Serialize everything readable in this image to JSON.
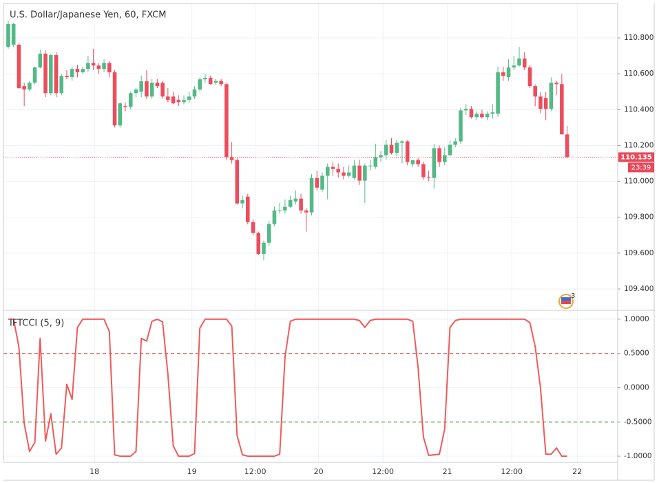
{
  "chart_data": [
    {
      "type": "candlestick",
      "title": "U.S. Dollar/Japanese Yen, 60, FXCM",
      "up_color": "#53b987",
      "down_color": "#eb4d5c",
      "grid": true,
      "ylim": [
        109.285,
        110.992
      ],
      "yticks": [
        {
          "value": 109.4,
          "label": "109.400"
        },
        {
          "value": 109.6,
          "label": "109.600"
        },
        {
          "value": 109.8,
          "label": "109.800"
        },
        {
          "value": 110.0,
          "label": "110.000"
        },
        {
          "value": 110.2,
          "label": "110.200"
        },
        {
          "value": 110.4,
          "label": "110.400"
        },
        {
          "value": 110.6,
          "label": "110.600"
        },
        {
          "value": 110.8,
          "label": "110.800"
        }
      ],
      "last_price": {
        "value": 110.135,
        "label": "110.135"
      },
      "countdown": "23:39",
      "last_color": "#e84a5a",
      "event_badge": "3",
      "open": [
        110.75,
        110.762,
        110.762,
        110.531,
        110.512,
        110.55,
        110.635,
        110.712,
        110.492,
        110.704,
        110.492,
        110.588,
        110.581,
        110.627,
        110.608,
        110.627,
        110.66,
        110.646,
        110.627,
        110.66,
        110.608,
        110.312,
        110.42,
        110.415,
        110.492,
        110.5,
        110.558,
        110.473,
        110.55,
        110.55,
        110.473,
        110.473,
        110.454,
        110.442,
        110.454,
        110.473,
        110.512,
        110.569,
        110.577,
        110.55,
        110.56,
        110.542,
        110.135,
        110.119,
        109.877,
        109.915,
        109.773,
        109.712,
        109.596,
        109.658,
        109.762,
        109.838,
        109.838,
        109.858,
        109.888,
        109.904,
        109.838,
        109.827,
        110.019,
        109.954,
        110.031,
        110.081,
        110.069,
        110.05,
        110.031,
        110.019,
        110.088,
        110.004,
        110.088,
        110.081,
        110.135,
        110.146,
        110.204,
        110.158,
        110.215,
        110.223,
        110.096,
        110.119,
        110.096,
        110.023,
        110.019,
        110.185,
        110.108,
        110.146,
        110.204,
        110.223,
        110.396,
        110.404,
        110.358,
        110.377,
        110.358,
        110.377,
        110.377,
        110.608,
        110.581,
        110.635,
        110.646,
        110.685,
        110.635,
        110.531,
        110.473,
        110.465,
        110.404,
        110.55,
        110.542,
        110.262
      ],
      "high": [
        110.896,
        110.885,
        110.77,
        110.55,
        110.56,
        110.64,
        110.735,
        110.73,
        110.71,
        110.72,
        110.6,
        110.62,
        110.64,
        110.65,
        110.64,
        110.7,
        110.74,
        110.66,
        110.68,
        110.67,
        110.62,
        110.44,
        110.44,
        110.5,
        110.52,
        110.59,
        110.62,
        110.57,
        110.57,
        110.56,
        110.52,
        110.5,
        110.48,
        110.48,
        110.5,
        110.53,
        110.58,
        110.6,
        110.59,
        110.57,
        110.57,
        110.55,
        110.22,
        110.13,
        109.92,
        109.93,
        109.79,
        109.72,
        109.67,
        109.78,
        109.86,
        109.88,
        109.9,
        109.92,
        109.95,
        109.93,
        109.85,
        110.04,
        110.06,
        110.05,
        110.1,
        110.11,
        110.1,
        110.08,
        110.09,
        110.12,
        110.12,
        110.1,
        110.12,
        110.21,
        110.17,
        110.23,
        110.24,
        110.23,
        110.23,
        110.23,
        110.12,
        110.13,
        110.11,
        110.06,
        110.21,
        110.2,
        110.19,
        110.23,
        110.24,
        110.41,
        110.43,
        110.42,
        110.39,
        110.4,
        110.39,
        110.43,
        110.64,
        110.64,
        110.68,
        110.7,
        110.75,
        110.72,
        110.65,
        110.54,
        110.5,
        110.5,
        110.58,
        110.56,
        110.6,
        110.31
      ],
      "low": [
        110.74,
        110.75,
        110.519,
        110.42,
        110.5,
        110.54,
        110.63,
        110.47,
        110.48,
        110.47,
        110.48,
        110.57,
        110.56,
        110.58,
        110.6,
        110.61,
        110.62,
        110.6,
        110.61,
        110.58,
        110.3,
        110.3,
        110.39,
        110.4,
        110.47,
        110.47,
        110.46,
        110.46,
        110.52,
        110.46,
        110.44,
        110.43,
        110.42,
        110.43,
        110.44,
        110.46,
        110.5,
        110.55,
        110.54,
        110.54,
        110.53,
        110.12,
        110.1,
        109.87,
        109.85,
        109.76,
        109.7,
        109.59,
        109.56,
        109.64,
        109.75,
        109.82,
        109.82,
        109.85,
        109.87,
        109.82,
        109.72,
        109.81,
        109.95,
        109.94,
        109.9,
        110.03,
        110.02,
        110.01,
        110.02,
        110.01,
        109.98,
        109.88,
        110.06,
        110.07,
        110.11,
        110.12,
        110.15,
        110.14,
        110.1,
        110.09,
        110.08,
        110.08,
        110.01,
        110.0,
        109.96,
        110.08,
        110.09,
        110.14,
        110.19,
        110.21,
        110.37,
        110.35,
        110.34,
        110.35,
        110.34,
        110.35,
        110.36,
        110.56,
        110.56,
        110.62,
        110.64,
        110.62,
        110.52,
        110.42,
        110.38,
        110.34,
        110.39,
        110.48,
        110.27,
        110.13
      ],
      "close": [
        110.877,
        110.877,
        110.519,
        110.512,
        110.55,
        110.635,
        110.712,
        110.492,
        110.704,
        110.492,
        110.588,
        110.581,
        110.627,
        110.608,
        110.627,
        110.66,
        110.646,
        110.627,
        110.66,
        110.608,
        110.312,
        110.435,
        110.415,
        110.492,
        110.512,
        110.558,
        110.473,
        110.55,
        110.531,
        110.473,
        110.454,
        110.435,
        110.442,
        110.454,
        110.473,
        110.512,
        110.569,
        110.577,
        110.542,
        110.56,
        110.542,
        110.135,
        110.119,
        109.877,
        109.896,
        109.773,
        109.712,
        109.596,
        109.658,
        109.762,
        109.838,
        109.838,
        109.858,
        109.896,
        109.904,
        109.838,
        109.827,
        110.019,
        109.965,
        110.031,
        110.081,
        110.069,
        110.05,
        110.031,
        110.05,
        110.088,
        110.004,
        110.088,
        110.088,
        110.135,
        110.146,
        110.204,
        110.158,
        110.215,
        110.223,
        110.108,
        110.119,
        110.096,
        110.023,
        110.019,
        110.185,
        110.108,
        110.146,
        110.204,
        110.223,
        110.396,
        110.404,
        110.358,
        110.377,
        110.358,
        110.377,
        110.385,
        110.608,
        110.588,
        110.635,
        110.646,
        110.685,
        110.635,
        110.531,
        110.473,
        110.404,
        110.404,
        110.55,
        110.542,
        110.262,
        110.135
      ]
    },
    {
      "type": "line",
      "title": "IFTCCI (5, 9)",
      "color": "#f05a5a",
      "grid": true,
      "xlim": [
        -0.9,
        114.5
      ],
      "xticks": [
        {
          "value": 16.2,
          "label": "18"
        },
        {
          "value": 34.5,
          "label": "19"
        },
        {
          "value": 46.4,
          "label": "12:00"
        },
        {
          "value": 58.3,
          "label": "20"
        },
        {
          "value": 70.4,
          "label": "12:00"
        },
        {
          "value": 82.5,
          "label": "21"
        },
        {
          "value": 94.6,
          "label": "12:00"
        },
        {
          "value": 106.9,
          "label": "22"
        }
      ],
      "ylim": [
        -1.09,
        1.12
      ],
      "yticks": [
        {
          "value": -1,
          "label": "-1.0000"
        },
        {
          "value": -0.5,
          "label": "-0.5000"
        },
        {
          "value": 0,
          "label": "0.0000"
        },
        {
          "value": 0.5,
          "label": "0.5000"
        },
        {
          "value": 1,
          "label": "1.0000"
        }
      ],
      "levels": [
        {
          "value": 0.5,
          "color": "#d23c3c"
        },
        {
          "value": -0.5,
          "color": "#2e8b2e"
        }
      ],
      "values": [
        1.0,
        1.0,
        0.6,
        -0.52,
        -0.93,
        -0.8,
        0.72,
        -0.78,
        -0.38,
        -0.97,
        -0.88,
        0.05,
        -0.17,
        0.88,
        1.0,
        1.0,
        1.0,
        1.0,
        1.0,
        0.82,
        -0.98,
        -1.0,
        -1.0,
        -1.0,
        -0.93,
        0.72,
        0.68,
        0.97,
        1.0,
        0.96,
        0.2,
        -0.85,
        -1.0,
        -1.0,
        -1.0,
        -0.96,
        0.87,
        1.0,
        1.0,
        1.0,
        1.0,
        1.0,
        0.9,
        -0.7,
        -0.98,
        -1.0,
        -1.0,
        -1.0,
        -1.0,
        -1.0,
        -1.0,
        -0.97,
        0.45,
        0.97,
        1.0,
        1.0,
        1.0,
        1.0,
        1.0,
        1.0,
        1.0,
        1.0,
        1.0,
        1.0,
        1.0,
        1.0,
        0.98,
        0.88,
        0.98,
        1.0,
        1.0,
        1.0,
        1.0,
        1.0,
        1.0,
        1.0,
        0.97,
        0.3,
        -0.72,
        -0.99,
        -0.98,
        -0.97,
        -0.6,
        0.88,
        0.98,
        1.0,
        1.0,
        1.0,
        1.0,
        1.0,
        1.0,
        1.0,
        1.0,
        1.0,
        1.0,
        1.0,
        1.0,
        1.0,
        0.95,
        0.6,
        0.0,
        -0.97,
        -0.97,
        -0.88,
        -1.0,
        -1.0
      ]
    }
  ]
}
